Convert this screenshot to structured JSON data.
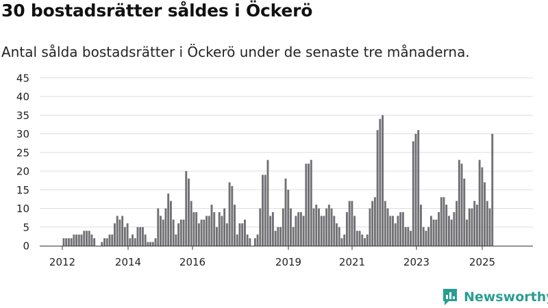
{
  "header": {
    "title": "30 bostadsrätter såldes i Öckerö",
    "subtitle": "Antal sålda bostadsrätter i Öckerö under de senaste tre månaderna."
  },
  "brand": {
    "logo_text": "Newsworthy",
    "color": "#2a9d93"
  },
  "colors": {
    "bar": "#707074",
    "highlight": "#189c94",
    "grid": "#dddddd"
  },
  "chart_data": {
    "type": "bar",
    "x_tick_labels": [
      "2012",
      "2014",
      "2016",
      "2019",
      "2021",
      "2023",
      "2025"
    ],
    "y_ticks": [
      0,
      5,
      10,
      15,
      20,
      25,
      30,
      35,
      40,
      45
    ],
    "ylim": [
      0,
      45
    ],
    "values": [
      2,
      2,
      2,
      2,
      3,
      3,
      3,
      3,
      4,
      4,
      4,
      3,
      2,
      0,
      0,
      1,
      2,
      2,
      3,
      3,
      6,
      8,
      7,
      8,
      5,
      6,
      2,
      3,
      2,
      5,
      5,
      5,
      3,
      1,
      1,
      1,
      2,
      10,
      8,
      7,
      10,
      14,
      12,
      7,
      3,
      6,
      7,
      7,
      20,
      18,
      12,
      9,
      9,
      6,
      7,
      7,
      8,
      8,
      11,
      9,
      5,
      9,
      8,
      10,
      6,
      17,
      16,
      11,
      3,
      6,
      6,
      7,
      3,
      2,
      0,
      2,
      3,
      10,
      19,
      19,
      23,
      8,
      9,
      4,
      5,
      5,
      10,
      18,
      15,
      10,
      5,
      8,
      9,
      9,
      8,
      22,
      22,
      23,
      10,
      11,
      10,
      8,
      8,
      10,
      11,
      10,
      8,
      6,
      5,
      2,
      3,
      9,
      12,
      12,
      8,
      4,
      4,
      3,
      2,
      3,
      10,
      12,
      13,
      31,
      34,
      35,
      12,
      10,
      8,
      8,
      6,
      8,
      9,
      9,
      5,
      5,
      4,
      28,
      30,
      31,
      11,
      5,
      4,
      5,
      8,
      7,
      7,
      9,
      13,
      13,
      11,
      8,
      7,
      9,
      12,
      23,
      22,
      18,
      7,
      10,
      10,
      12,
      11,
      23,
      21,
      17,
      12,
      10,
      30
    ],
    "highlight_index": 171,
    "highlight_label": "30",
    "grid": true,
    "legend": "none"
  }
}
